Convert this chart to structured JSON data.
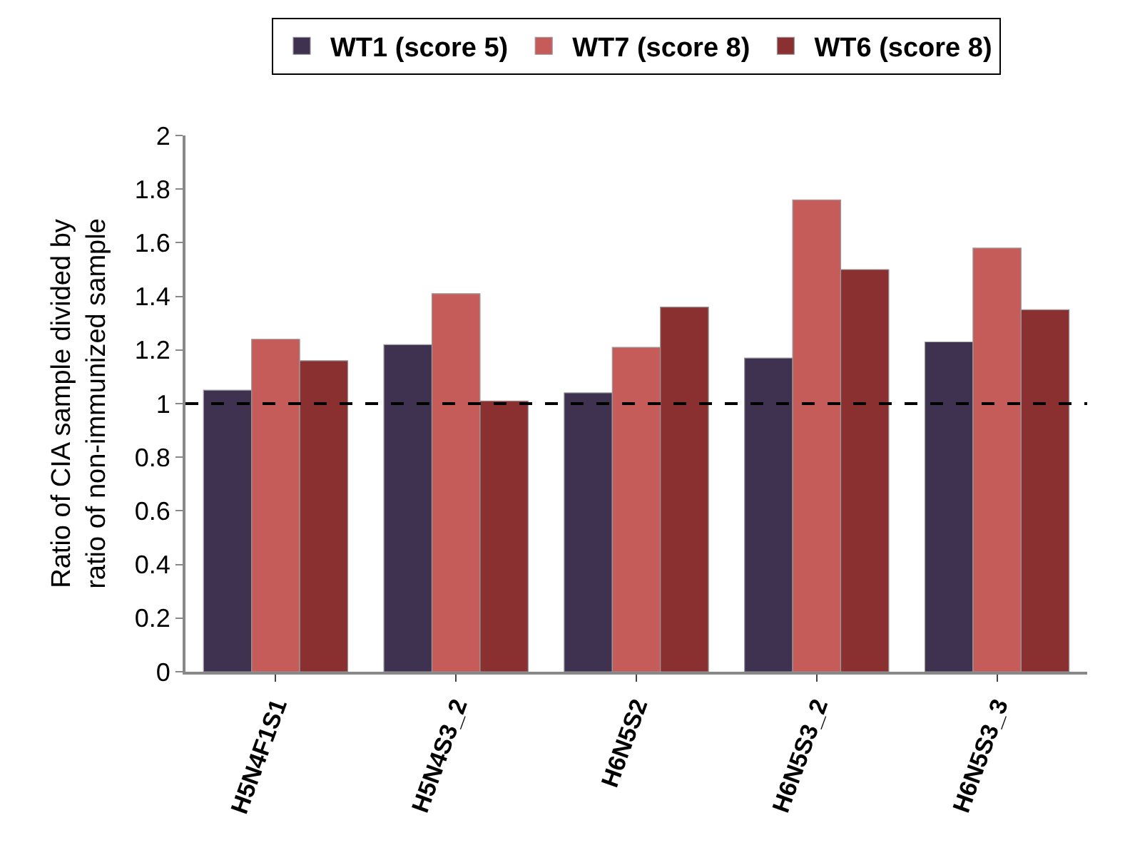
{
  "chart_data": {
    "type": "bar",
    "ylabel": "Ratio of CIA sample divided by\nratio of non-immunized sample",
    "categories": [
      "H5N4F1S1",
      "H5N4S3_2",
      "H6N5S2",
      "H6N5S3_2",
      "H6N5S3_3"
    ],
    "series": [
      {
        "name": "WT1 (score 5)",
        "color": "#3f3150",
        "values": [
          1.05,
          1.22,
          1.04,
          1.17,
          1.23
        ]
      },
      {
        "name": "WT7 (score 8)",
        "color": "#c55c5a",
        "values": [
          1.24,
          1.41,
          1.21,
          1.76,
          1.58
        ]
      },
      {
        "name": "WT6 (score 8)",
        "color": "#8a3030",
        "values": [
          1.16,
          1.01,
          1.36,
          1.5,
          1.35
        ]
      }
    ],
    "ylim": [
      0,
      2
    ],
    "yticks": [
      0,
      0.2,
      0.4,
      0.6,
      0.8,
      1,
      1.2,
      1.4,
      1.6,
      1.8,
      2
    ],
    "ref_lines": [
      {
        "axis": "y",
        "value": 1,
        "color": "#000000",
        "line_style": "dashed"
      }
    ],
    "legend": "top"
  }
}
